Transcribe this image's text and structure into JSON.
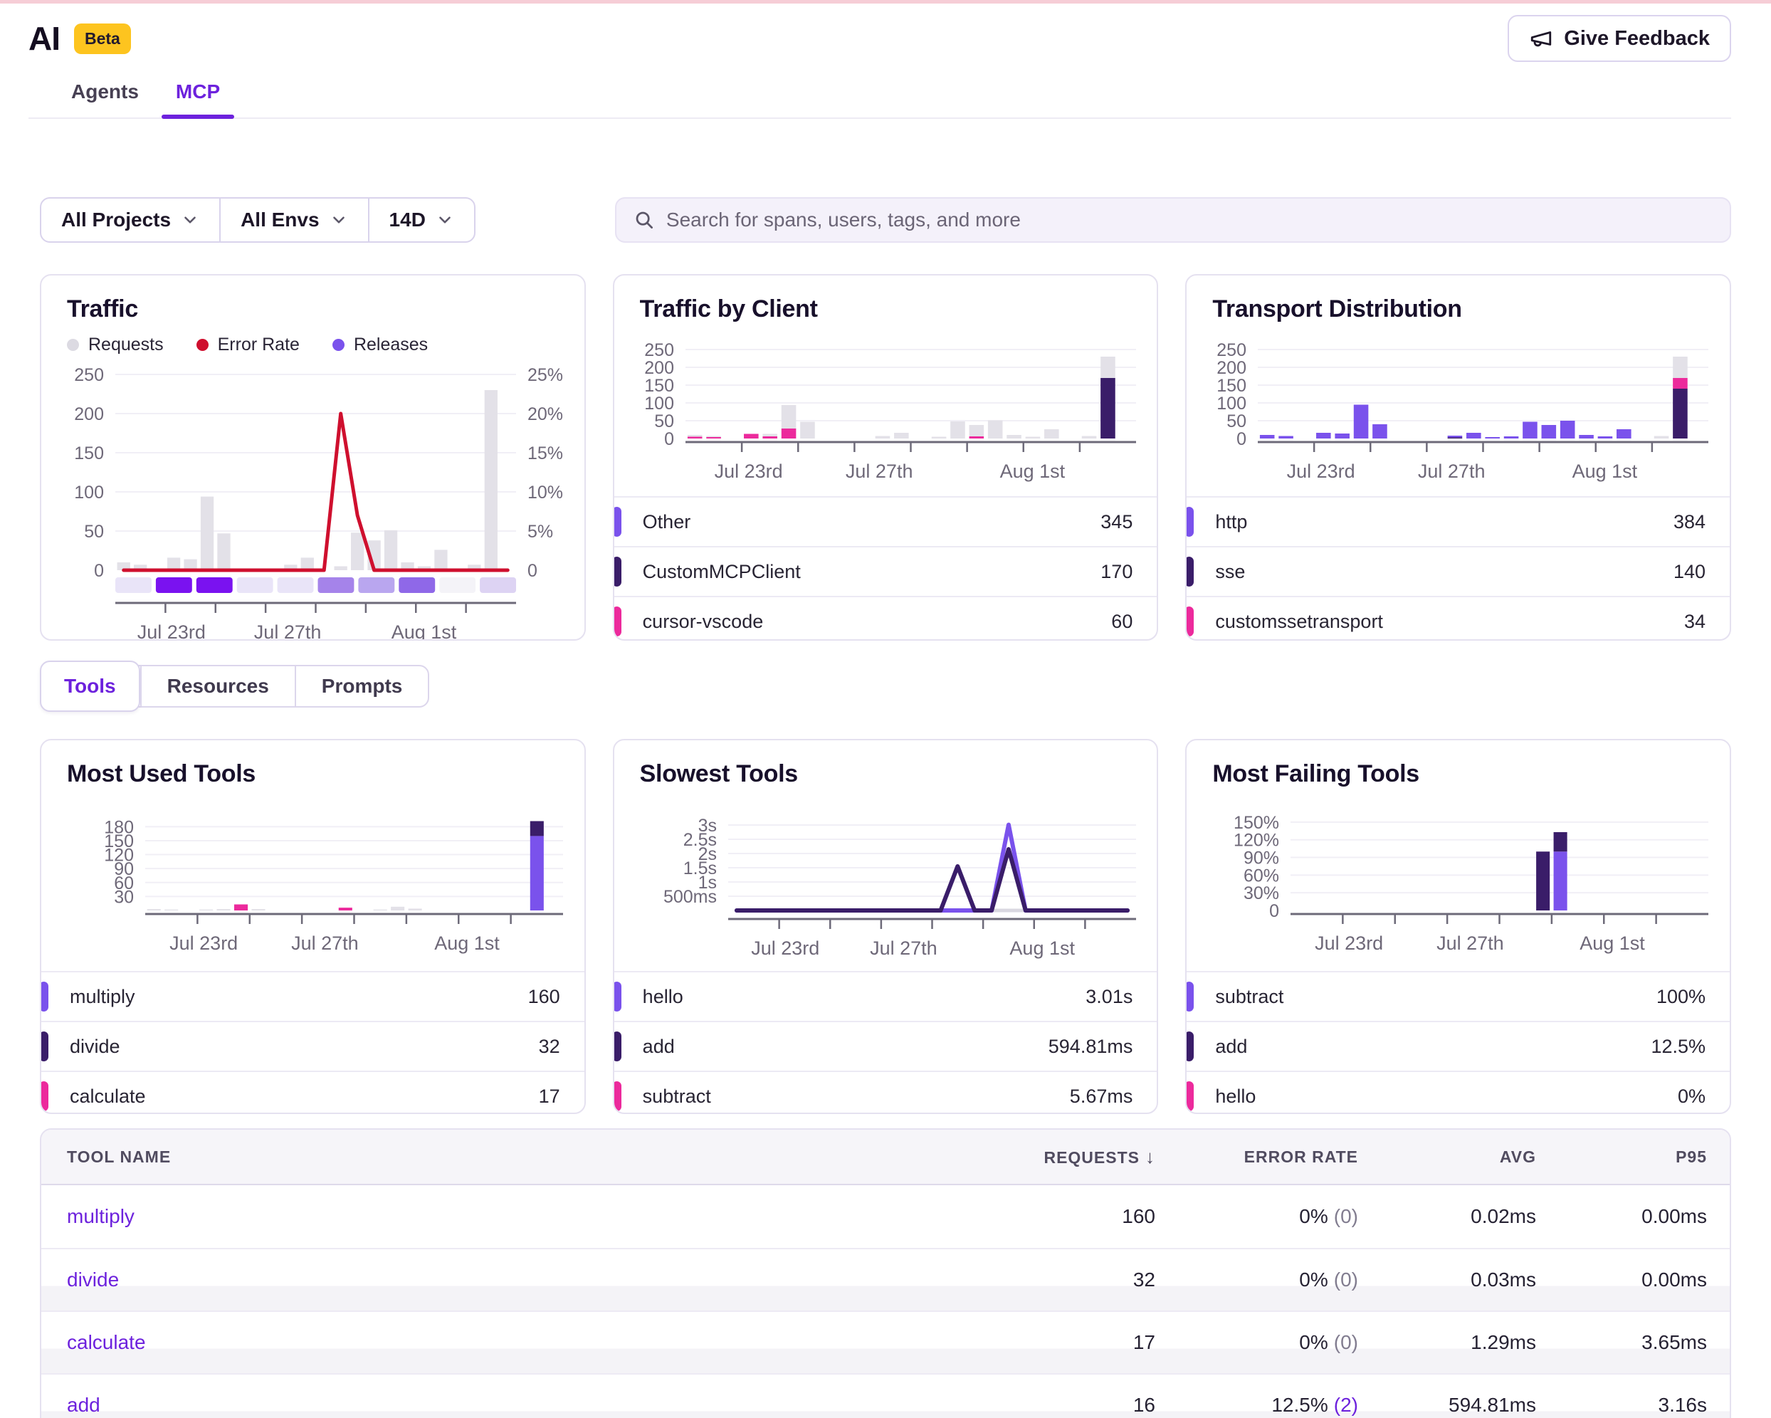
{
  "app": {
    "title": "AI",
    "badge": "Beta",
    "feedback_label": "Give Feedback"
  },
  "nav_tabs": [
    {
      "label": "Agents",
      "active": false
    },
    {
      "label": "MCP",
      "active": true
    }
  ],
  "filters": {
    "project": "All Projects",
    "env": "All Envs",
    "range": "14D"
  },
  "search": {
    "placeholder": "Search for spans, users, tags, and more"
  },
  "section_tabs": [
    {
      "label": "Tools",
      "active": true
    },
    {
      "label": "Resources",
      "active": false
    },
    {
      "label": "Prompts",
      "active": false
    }
  ],
  "colors": {
    "violet": "#7a52ec",
    "dark": "#3a1d69",
    "pink": "#ec2a9c",
    "gray": "#e3e1e8",
    "red": "#cf0f2e",
    "accent": "#6d22dd",
    "badge_yellow": "#fdc41f"
  },
  "chart_data": [
    {
      "id": "traffic",
      "type": "bar+line",
      "title": "Traffic",
      "legend": [
        {
          "label": "Requests",
          "color": "#dcdae2"
        },
        {
          "label": "Error Rate",
          "color": "#cf0f2e"
        },
        {
          "label": "Releases",
          "color": "#7a52ec"
        }
      ],
      "y_left": {
        "max": 260,
        "ticks": [
          0,
          50,
          100,
          150,
          200,
          250
        ]
      },
      "y_right": {
        "max": 26,
        "ticks": [
          0,
          5,
          10,
          15,
          20,
          25
        ],
        "suffix": "%"
      },
      "x_ticks": [
        {
          "label": "Jul 23rd",
          "f": 0.14
        },
        {
          "label": "Jul 27th",
          "f": 0.43
        },
        {
          "label": "Aug 1st",
          "f": 0.77
        }
      ],
      "stacks": [
        [
          [
            "gray",
            10
          ]
        ],
        [
          [
            "gray",
            7
          ]
        ],
        [],
        [
          [
            "gray",
            16
          ]
        ],
        [
          [
            "gray",
            14
          ]
        ],
        [
          [
            "gray",
            94
          ]
        ],
        [
          [
            "gray",
            47
          ]
        ],
        [],
        [],
        [],
        [
          [
            "gray",
            7
          ]
        ],
        [
          [
            "gray",
            16
          ]
        ],
        [],
        [
          [
            "gray",
            5
          ]
        ],
        [
          [
            "gray",
            48
          ]
        ],
        [
          [
            "gray",
            38
          ]
        ],
        [
          [
            "gray",
            51
          ]
        ],
        [
          [
            "gray",
            10
          ]
        ],
        [
          [
            "gray",
            5
          ]
        ],
        [
          [
            "gray",
            26
          ]
        ],
        [],
        [
          [
            "gray",
            7
          ]
        ],
        [
          [
            "gray",
            230
          ]
        ],
        []
      ],
      "line": {
        "color": "#cf0f2e",
        "axis": "right",
        "width": 5,
        "values": [
          0,
          0,
          0,
          0,
          0,
          0,
          0,
          0,
          0,
          0,
          0,
          0,
          0,
          20,
          7,
          0,
          0,
          0,
          0,
          0,
          0,
          0,
          0,
          0
        ]
      },
      "release_band": [
        "#e9e4f8",
        "#7a12f0",
        "#7a12f0",
        "#e9e4f8",
        "#e9e4f8",
        "#a583ea",
        "#b9a6ef",
        "#8f68e8",
        "#f4f3f8",
        "#ddd3f3"
      ]
    },
    {
      "id": "by_client",
      "type": "stacked-bar",
      "title": "Traffic by Client",
      "y_left": {
        "max": 260,
        "ticks": [
          0,
          50,
          100,
          150,
          200,
          250
        ]
      },
      "x_ticks": [
        {
          "label": "Jul 23rd",
          "f": 0.14
        },
        {
          "label": "Jul 27th",
          "f": 0.43
        },
        {
          "label": "Aug 1st",
          "f": 0.77
        }
      ],
      "stacks": [
        [
          [
            "pink",
            5
          ],
          [
            "gray",
            5
          ]
        ],
        [
          [
            "pink",
            4
          ],
          [
            "gray",
            3
          ]
        ],
        [],
        [
          [
            "pink",
            13
          ]
        ],
        [
          [
            "pink",
            6
          ],
          [
            "gray",
            7
          ]
        ],
        [
          [
            "pink",
            28
          ],
          [
            "gray",
            66
          ]
        ],
        [
          [
            "gray",
            47
          ]
        ],
        [],
        [],
        [],
        [
          [
            "gray",
            7
          ]
        ],
        [
          [
            "gray",
            16
          ]
        ],
        [],
        [
          [
            "gray",
            5
          ]
        ],
        [
          [
            "gray",
            48
          ]
        ],
        [
          [
            "pink",
            6
          ],
          [
            "gray",
            32
          ]
        ],
        [
          [
            "gray",
            51
          ]
        ],
        [
          [
            "gray",
            10
          ]
        ],
        [
          [
            "gray",
            5
          ]
        ],
        [
          [
            "gray",
            26
          ]
        ],
        [],
        [
          [
            "gray",
            7
          ]
        ],
        [
          [
            "dark",
            170
          ],
          [
            "gray",
            60
          ]
        ],
        []
      ],
      "list": [
        {
          "label": "Other",
          "value": "345",
          "color": "violet"
        },
        {
          "label": "CustomMCPClient",
          "value": "170",
          "color": "dark"
        },
        {
          "label": "cursor-vscode",
          "value": "60",
          "color": "pink"
        }
      ]
    },
    {
      "id": "transport",
      "type": "stacked-bar",
      "title": "Transport Distribution",
      "y_left": {
        "max": 260,
        "ticks": [
          0,
          50,
          100,
          150,
          200,
          250
        ]
      },
      "x_ticks": [
        {
          "label": "Jul 23rd",
          "f": 0.14
        },
        {
          "label": "Jul 27th",
          "f": 0.43
        },
        {
          "label": "Aug 1st",
          "f": 0.77
        }
      ],
      "stacks": [
        [
          [
            "violet",
            10
          ]
        ],
        [
          [
            "violet",
            7
          ]
        ],
        [],
        [
          [
            "violet",
            16
          ]
        ],
        [
          [
            "violet",
            14
          ]
        ],
        [
          [
            "violet",
            95
          ]
        ],
        [
          [
            "violet",
            40
          ]
        ],
        [],
        [],
        [],
        [
          [
            "dark",
            3
          ],
          [
            "violet",
            5
          ]
        ],
        [
          [
            "violet",
            16
          ]
        ],
        [
          [
            "violet",
            4
          ]
        ],
        [
          [
            "violet",
            6
          ]
        ],
        [
          [
            "violet",
            47
          ]
        ],
        [
          [
            "violet",
            38
          ]
        ],
        [
          [
            "violet",
            50
          ]
        ],
        [
          [
            "violet",
            10
          ]
        ],
        [
          [
            "violet",
            6
          ]
        ],
        [
          [
            "violet",
            26
          ]
        ],
        [],
        [
          [
            "gray",
            7
          ]
        ],
        [
          [
            "dark",
            140
          ],
          [
            "pink",
            30
          ],
          [
            "gray",
            60
          ]
        ],
        []
      ],
      "list": [
        {
          "label": "http",
          "value": "384",
          "color": "violet"
        },
        {
          "label": "sse",
          "value": "140",
          "color": "dark"
        },
        {
          "label": "customssetransport",
          "value": "34",
          "color": "pink"
        }
      ]
    },
    {
      "id": "most_used",
      "type": "stacked-bar",
      "title": "Most Used Tools",
      "y_left": {
        "max": 205,
        "ticks": [
          30,
          60,
          90,
          120,
          150,
          180
        ]
      },
      "x_ticks": [
        {
          "label": "Jul 23rd",
          "f": 0.14
        },
        {
          "label": "Jul 27th",
          "f": 0.43
        },
        {
          "label": "Aug 1st",
          "f": 0.77
        }
      ],
      "stacks": [
        [
          [
            "gray",
            3
          ]
        ],
        [
          [
            "gray",
            2
          ]
        ],
        [],
        [
          [
            "gray",
            2
          ]
        ],
        [
          [
            "gray",
            3
          ]
        ],
        [
          [
            "pink",
            13
          ]
        ],
        [
          [
            "gray",
            3
          ]
        ],
        [],
        [],
        [],
        [],
        [
          [
            "pink",
            6
          ]
        ],
        [],
        [
          [
            "gray",
            2
          ]
        ],
        [
          [
            "gray",
            8
          ]
        ],
        [
          [
            "gray",
            4
          ]
        ],
        [],
        [],
        [],
        [],
        [],
        [],
        [
          [
            "violet",
            160
          ],
          [
            "dark",
            32
          ]
        ],
        []
      ],
      "list": [
        {
          "label": "multiply",
          "value": "160",
          "color": "violet"
        },
        {
          "label": "divide",
          "value": "32",
          "color": "dark"
        },
        {
          "label": "calculate",
          "value": "17",
          "color": "pink"
        }
      ]
    },
    {
      "id": "slowest",
      "type": "line",
      "title": "Slowest Tools",
      "y_left": {
        "max": 3350,
        "ticks": [
          {
            "v": 500,
            "l": "500ms"
          },
          {
            "v": 1000,
            "l": "1s"
          },
          {
            "v": 1500,
            "l": "1.5s"
          },
          {
            "v": 2000,
            "l": "2s"
          },
          {
            "v": 2500,
            "l": "2.5s"
          },
          {
            "v": 3000,
            "l": "3s"
          }
        ]
      },
      "x_ticks": [
        {
          "label": "Jul 23rd",
          "f": 0.14
        },
        {
          "label": "Jul 27th",
          "f": 0.43
        },
        {
          "label": "Aug 1st",
          "f": 0.77
        }
      ],
      "lines": [
        {
          "color": "#d9d7e0",
          "width": 5,
          "values": [
            0,
            0,
            0,
            0,
            0,
            0,
            0,
            0,
            0,
            0,
            0,
            0,
            0,
            0,
            0,
            0,
            0,
            0,
            0,
            0,
            0,
            0,
            0,
            0
          ]
        },
        {
          "color": "violet",
          "width": 6,
          "values": [
            0,
            0,
            0,
            0,
            0,
            0,
            0,
            0,
            0,
            0,
            0,
            0,
            0,
            0,
            0,
            0,
            3010,
            0,
            0,
            0,
            0,
            0,
            0,
            0
          ]
        },
        {
          "color": "dark",
          "width": 6,
          "values": [
            0,
            0,
            0,
            0,
            0,
            0,
            0,
            0,
            0,
            0,
            0,
            0,
            0,
            1550,
            0,
            0,
            2150,
            0,
            0,
            0,
            0,
            0,
            0,
            0
          ]
        }
      ],
      "list": [
        {
          "label": "hello",
          "value": "3.01s",
          "color": "violet"
        },
        {
          "label": "add",
          "value": "594.81ms",
          "color": "dark"
        },
        {
          "label": "subtract",
          "value": "5.67ms",
          "color": "pink"
        }
      ]
    },
    {
      "id": "failing",
      "type": "stacked-bar",
      "title": "Most Failing Tools",
      "y_left": {
        "max": 162,
        "ticks": [
          0,
          30,
          60,
          90,
          120,
          150
        ],
        "suffix": "%"
      },
      "x_ticks": [
        {
          "label": "Jul 23rd",
          "f": 0.14
        },
        {
          "label": "Jul 27th",
          "f": 0.43
        },
        {
          "label": "Aug 1st",
          "f": 0.77
        }
      ],
      "stacks": [
        [],
        [],
        [],
        [],
        [],
        [],
        [],
        [],
        [],
        [],
        [],
        [],
        [],
        [],
        [
          [
            "dark",
            100
          ]
        ],
        [
          [
            "violet",
            100
          ],
          [
            "dark",
            33
          ]
        ],
        [],
        [],
        [],
        [],
        [],
        [],
        [],
        []
      ],
      "list": [
        {
          "label": "subtract",
          "value": "100%",
          "color": "violet"
        },
        {
          "label": "add",
          "value": "12.5%",
          "color": "dark"
        },
        {
          "label": "hello",
          "value": "0%",
          "color": "pink"
        }
      ]
    }
  ],
  "table": {
    "headers": [
      "TOOL NAME",
      "REQUESTS",
      "ERROR RATE",
      "AVG",
      "P95"
    ],
    "sort_icon": "↓",
    "rows": [
      {
        "name": "multiply",
        "requests": "160",
        "error_rate": "0%",
        "error_count": "(0)",
        "error_highlight": false,
        "avg": "0.02ms",
        "p95": "0.00ms"
      },
      {
        "name": "divide",
        "requests": "32",
        "error_rate": "0%",
        "error_count": "(0)",
        "error_highlight": false,
        "avg": "0.03ms",
        "p95": "0.00ms"
      },
      {
        "name": "calculate",
        "requests": "17",
        "error_rate": "0%",
        "error_count": "(0)",
        "error_highlight": false,
        "avg": "1.29ms",
        "p95": "3.65ms"
      },
      {
        "name": "add",
        "requests": "16",
        "error_rate": "12.5%",
        "error_count": "(2)",
        "error_highlight": true,
        "avg": "594.81ms",
        "p95": "3.16s"
      }
    ]
  }
}
